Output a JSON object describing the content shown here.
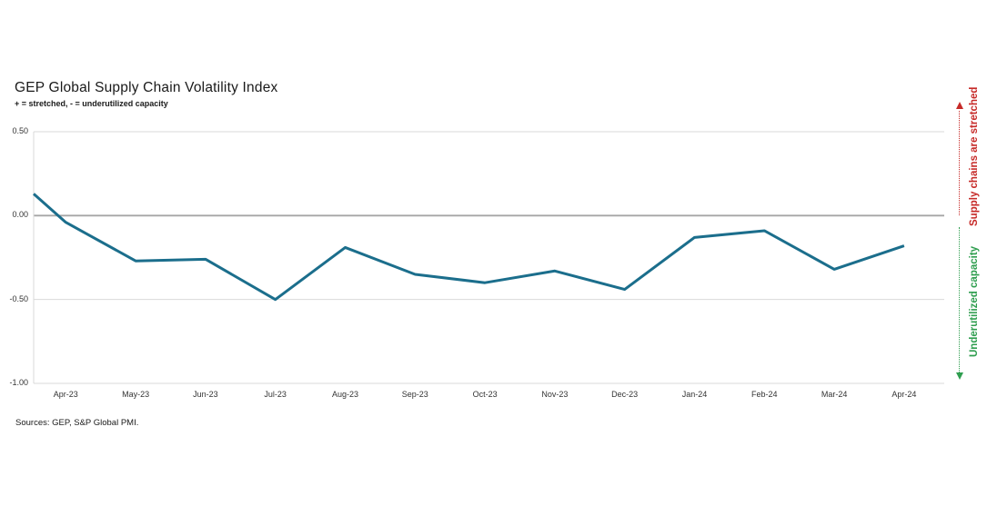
{
  "header": {
    "title": "GEP Global Supply Chain Volatility Index",
    "subtitle": "+ = stretched, - = underutilized capacity"
  },
  "annotations": {
    "stretched_label": "Supply chains are stretched",
    "stretched_color": "#C62A28",
    "underutilized_label": "Underutilized capacity",
    "underutilized_color": "#2F9E4F"
  },
  "footer": {
    "sources": "Sources: GEP, S&P Global PMI."
  },
  "chart_data": {
    "type": "line",
    "title": "GEP Global Supply Chain Volatility Index",
    "subtitle": "+ = stretched, - = underutilized capacity",
    "categories": [
      "",
      "Apr-23",
      "May-23",
      "Jun-23",
      "Jul-23",
      "Aug-23",
      "Sep-23",
      "Oct-23",
      "Nov-23",
      "Dec-23",
      "Jan-24",
      "Feb-24",
      "Mar-24",
      "Apr-24"
    ],
    "values": [
      0.13,
      -0.04,
      -0.27,
      -0.26,
      -0.5,
      -0.19,
      -0.35,
      -0.4,
      -0.33,
      -0.44,
      -0.13,
      -0.09,
      -0.32,
      -0.18
    ],
    "ylim": [
      -1.0,
      0.5
    ],
    "y_ticks": [
      0.5,
      0.0,
      -0.5,
      -1.0
    ],
    "y_tick_labels": [
      "0.50",
      "0.00",
      "-0.50",
      "-1.00"
    ],
    "series_color": "#1B6E8C",
    "gridline_color": "#D9D9D9",
    "zero_line_color": "#A6A6A6",
    "grid": "horizontal gridlines at each y tick; light gray left/bottom axis lines; darker zero line",
    "legend": "none",
    "layout_note": "first data point sits on the left plot edge without an x-axis label; plot extends ~half a slot beyond Apr-24"
  }
}
